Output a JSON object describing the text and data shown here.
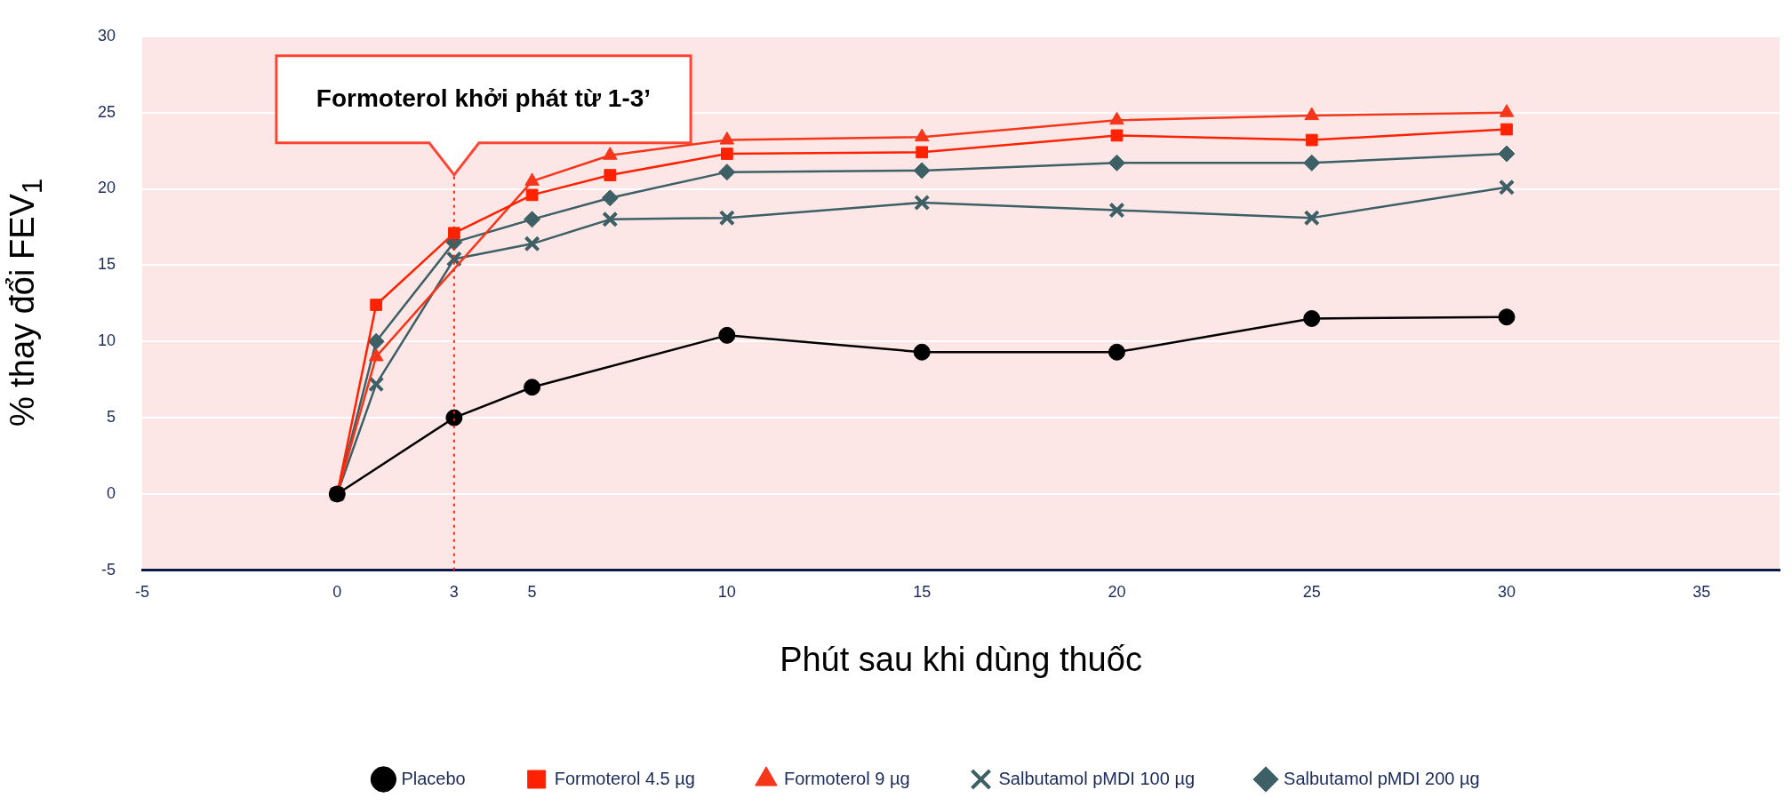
{
  "chart_data": {
    "type": "line",
    "xlabel": "Phút sau khi dùng thuốc",
    "ylabel": "% thay đổi FEV$_{1}$",
    "x": [
      0,
      1,
      3,
      5,
      7,
      10,
      15,
      20,
      25,
      30
    ],
    "series": [
      {
        "name": "Placebo",
        "color": "#000000",
        "marker": "circle",
        "x": [
          0,
          3,
          5,
          10,
          15,
          20,
          25,
          30
        ],
        "values": [
          0,
          5,
          7,
          10.4,
          9.3,
          9.3,
          11.5,
          11.6
        ]
      },
      {
        "name": "Formoterol 4.5 µg",
        "color": "#ff2200",
        "marker": "square",
        "values": [
          0,
          12.4,
          17.1,
          19.6,
          20.9,
          22.3,
          22.4,
          23.5,
          23.2,
          23.9
        ]
      },
      {
        "name": "Formoterol 9 µg",
        "color": "#f5361a",
        "marker": "triangle",
        "values": [
          0,
          9,
          null,
          20.5,
          22.2,
          23.2,
          23.4,
          24.5,
          24.8,
          25
        ]
      },
      {
        "name": "Salbutamol pMDI 100 µg",
        "color": "#3d5f66",
        "marker": "cross",
        "values": [
          0,
          7.2,
          15.4,
          16.4,
          18,
          18.1,
          19.1,
          18.6,
          18.1,
          20.1
        ]
      },
      {
        "name": "Salbutamol pMDI 200 µg",
        "color": "#3d5f66",
        "marker": "diamond",
        "values": [
          0,
          10,
          16.5,
          18,
          19.4,
          21.1,
          21.2,
          21.7,
          21.7,
          22.3
        ]
      }
    ],
    "xlim": [
      -5,
      37
    ],
    "xticks": [
      -5,
      0,
      3,
      5,
      10,
      15,
      20,
      25,
      30,
      35
    ],
    "ylim": [
      -5,
      30
    ],
    "yticks": [
      -5,
      0,
      5,
      10,
      15,
      20,
      25,
      30
    ],
    "grid": "y",
    "legend": "bottom",
    "ref_lines": [
      {
        "axis": "x",
        "value": 3,
        "color": "#ff2200",
        "line_style": "dotted"
      }
    ],
    "annotations": [
      "Formoterol khởi phát từ 1-3’"
    ]
  }
}
